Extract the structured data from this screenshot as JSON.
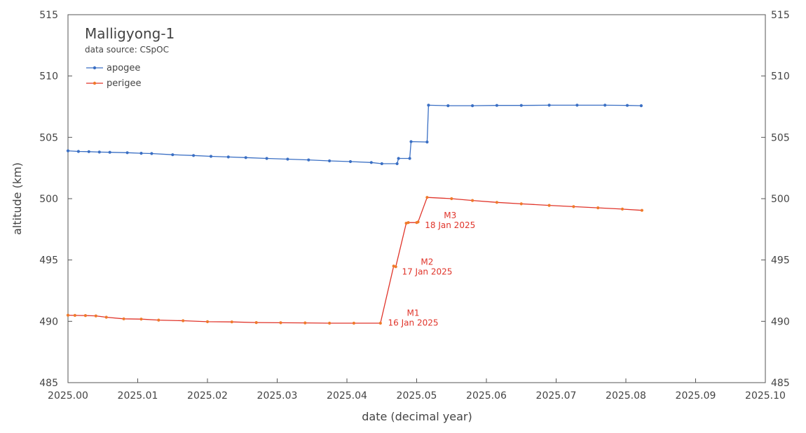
{
  "chart_data": {
    "type": "line",
    "title": "Malligyong-1",
    "subtitle": "data source:  CSpOC",
    "xlabel": "date (decimal year)",
    "ylabel": "altitude (km)",
    "xlim": [
      2025.0,
      2025.1
    ],
    "ylim": [
      485,
      515
    ],
    "x_ticks": [
      2025.0,
      2025.01,
      2025.02,
      2025.03,
      2025.04,
      2025.05,
      2025.06,
      2025.07,
      2025.08,
      2025.09,
      2025.1
    ],
    "x_tick_labels": [
      "2025.00",
      "2025.01",
      "2025.02",
      "2025.03",
      "2025.04",
      "2025.05",
      "2025.06",
      "2025.07",
      "2025.08",
      "2025.09",
      "2025.10"
    ],
    "y_ticks": [
      485,
      490,
      495,
      500,
      505,
      510,
      515
    ],
    "y_tick_labels": [
      "485",
      "490",
      "495",
      "500",
      "505",
      "510",
      "515"
    ],
    "legend_position": "top-left",
    "grid": false,
    "series": [
      {
        "name": "apogee",
        "color": "#3a6fc4",
        "x": [
          2025.0,
          2025.0015,
          2025.003,
          2025.0045,
          2025.006,
          2025.0085,
          2025.0105,
          2025.012,
          2025.015,
          2025.018,
          2025.0205,
          2025.023,
          2025.0255,
          2025.0285,
          2025.0315,
          2025.0345,
          2025.0375,
          2025.0405,
          2025.0435,
          2025.045,
          2025.0472,
          2025.0474,
          2025.049,
          2025.0492,
          2025.0515,
          2025.0517,
          2025.0545,
          2025.058,
          2025.0615,
          2025.065,
          2025.069,
          2025.073,
          2025.077,
          2025.0802,
          2025.0822
        ],
        "values": [
          503.9,
          503.85,
          503.83,
          503.8,
          503.78,
          503.75,
          503.7,
          503.68,
          503.58,
          503.52,
          503.45,
          503.4,
          503.35,
          503.28,
          503.22,
          503.16,
          503.08,
          503.02,
          502.95,
          502.85,
          502.85,
          503.28,
          503.28,
          504.65,
          504.62,
          507.62,
          507.58,
          507.58,
          507.6,
          507.6,
          507.62,
          507.62,
          507.62,
          507.6,
          507.58
        ]
      },
      {
        "name": "perigee",
        "color": "#e0342a",
        "x": [
          2025.0,
          2025.001,
          2025.0025,
          2025.004,
          2025.0055,
          2025.008,
          2025.0105,
          2025.013,
          2025.0165,
          2025.02,
          2025.0235,
          2025.027,
          2025.0305,
          2025.034,
          2025.0375,
          2025.041,
          2025.0448,
          2025.0467,
          2025.047,
          2025.0485,
          2025.0488,
          2025.05,
          2025.0502,
          2025.0515,
          2025.055,
          2025.058,
          2025.0615,
          2025.065,
          2025.069,
          2025.0725,
          2025.076,
          2025.0795,
          2025.0823
        ],
        "values": [
          490.5,
          490.48,
          490.47,
          490.44,
          490.33,
          490.2,
          490.18,
          490.1,
          490.05,
          489.97,
          489.95,
          489.9,
          489.88,
          489.87,
          489.85,
          489.85,
          489.85,
          494.5,
          494.45,
          498.0,
          498.05,
          498.05,
          498.1,
          500.1,
          500.0,
          499.85,
          499.7,
          499.58,
          499.45,
          499.35,
          499.25,
          499.15,
          499.05
        ]
      }
    ],
    "annotations": [
      {
        "name": "M1",
        "label": "M1",
        "date": "16 Jan 2025",
        "x": 2025.0495,
        "y": 490.45
      },
      {
        "name": "M2",
        "label": "M2",
        "date": "17 Jan 2025",
        "x": 2025.0515,
        "y": 494.6
      },
      {
        "name": "M3",
        "label": "M3",
        "date": "18 Jan 2025",
        "x": 2025.0548,
        "y": 498.4
      }
    ]
  }
}
